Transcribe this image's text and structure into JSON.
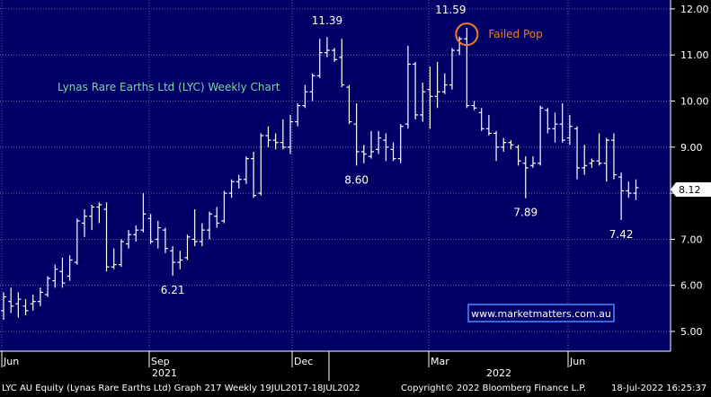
{
  "chart_data": {
    "type": "ohlc",
    "title": "Lynas Rare Earths Ltd (LYC) Weekly Chart",
    "ylim": [
      4.5,
      12.2
    ],
    "y_ticks": [
      "12.00",
      "11.00",
      "10.00",
      "9.00",
      "8.00",
      "7.00",
      "6.00",
      "5.00"
    ],
    "x_month_labels": [
      "Jun",
      "Sep",
      "Dec",
      "Mar",
      "Jun"
    ],
    "x_year_labels": [
      "2021",
      "2022"
    ],
    "last_price": "8.12",
    "bars": [
      {
        "o": 5.45,
        "h": 5.85,
        "l": 5.25,
        "c": 5.75
      },
      {
        "o": 5.65,
        "h": 5.95,
        "l": 5.4,
        "c": 5.55
      },
      {
        "o": 5.6,
        "h": 5.85,
        "l": 5.3,
        "c": 5.7
      },
      {
        "o": 5.55,
        "h": 5.7,
        "l": 5.35,
        "c": 5.45
      },
      {
        "o": 5.6,
        "h": 5.8,
        "l": 5.45,
        "c": 5.65
      },
      {
        "o": 5.65,
        "h": 5.95,
        "l": 5.55,
        "c": 5.85
      },
      {
        "o": 5.8,
        "h": 6.2,
        "l": 5.75,
        "c": 6.15
      },
      {
        "o": 6.1,
        "h": 6.45,
        "l": 5.95,
        "c": 6.35
      },
      {
        "o": 6.3,
        "h": 6.6,
        "l": 5.95,
        "c": 6.05
      },
      {
        "o": 6.2,
        "h": 6.65,
        "l": 6.1,
        "c": 6.55
      },
      {
        "o": 6.5,
        "h": 7.45,
        "l": 6.45,
        "c": 7.4
      },
      {
        "o": 7.35,
        "h": 7.65,
        "l": 7.05,
        "c": 7.5
      },
      {
        "o": 7.5,
        "h": 7.75,
        "l": 7.2,
        "c": 7.7
      },
      {
        "o": 7.7,
        "h": 7.8,
        "l": 7.35,
        "c": 7.75
      },
      {
        "o": 7.65,
        "h": 7.8,
        "l": 6.3,
        "c": 6.4
      },
      {
        "o": 6.4,
        "h": 6.8,
        "l": 6.35,
        "c": 6.45
      },
      {
        "o": 6.45,
        "h": 7.0,
        "l": 6.4,
        "c": 6.95
      },
      {
        "o": 6.9,
        "h": 7.2,
        "l": 6.8,
        "c": 7.1
      },
      {
        "o": 7.1,
        "h": 7.3,
        "l": 6.95,
        "c": 7.2
      },
      {
        "o": 7.2,
        "h": 8.0,
        "l": 7.15,
        "c": 7.55
      },
      {
        "o": 7.45,
        "h": 7.55,
        "l": 6.9,
        "c": 6.95
      },
      {
        "o": 7.0,
        "h": 7.4,
        "l": 6.8,
        "c": 7.25
      },
      {
        "o": 7.2,
        "h": 7.25,
        "l": 6.7,
        "c": 6.8
      },
      {
        "o": 6.75,
        "h": 6.85,
        "l": 6.21,
        "c": 6.5
      },
      {
        "o": 6.5,
        "h": 6.75,
        "l": 6.35,
        "c": 6.55
      },
      {
        "o": 6.6,
        "h": 7.1,
        "l": 6.55,
        "c": 7.05
      },
      {
        "o": 7.0,
        "h": 7.65,
        "l": 6.85,
        "c": 6.95
      },
      {
        "o": 6.95,
        "h": 7.35,
        "l": 6.85,
        "c": 7.2
      },
      {
        "o": 7.2,
        "h": 7.6,
        "l": 7.0,
        "c": 7.55
      },
      {
        "o": 7.5,
        "h": 7.7,
        "l": 7.25,
        "c": 7.35
      },
      {
        "o": 7.4,
        "h": 8.05,
        "l": 7.35,
        "c": 8.0
      },
      {
        "o": 8.0,
        "h": 8.3,
        "l": 7.9,
        "c": 8.25
      },
      {
        "o": 8.25,
        "h": 8.4,
        "l": 8.1,
        "c": 8.3
      },
      {
        "o": 8.3,
        "h": 8.8,
        "l": 8.2,
        "c": 8.75
      },
      {
        "o": 8.75,
        "h": 8.9,
        "l": 7.9,
        "c": 7.95
      },
      {
        "o": 8.0,
        "h": 9.3,
        "l": 7.95,
        "c": 9.25
      },
      {
        "o": 9.25,
        "h": 9.45,
        "l": 9.0,
        "c": 9.15
      },
      {
        "o": 9.15,
        "h": 9.3,
        "l": 8.95,
        "c": 9.1
      },
      {
        "o": 9.1,
        "h": 9.6,
        "l": 8.95,
        "c": 9.0
      },
      {
        "o": 9.0,
        "h": 9.7,
        "l": 8.85,
        "c": 9.55
      },
      {
        "o": 9.55,
        "h": 9.95,
        "l": 9.45,
        "c": 9.9
      },
      {
        "o": 9.9,
        "h": 10.35,
        "l": 9.85,
        "c": 10.2
      },
      {
        "o": 10.2,
        "h": 10.6,
        "l": 10.0,
        "c": 10.55
      },
      {
        "o": 10.55,
        "h": 11.35,
        "l": 10.5,
        "c": 11.05
      },
      {
        "o": 11.05,
        "h": 11.39,
        "l": 10.95,
        "c": 11.1
      },
      {
        "o": 11.1,
        "h": 11.15,
        "l": 10.85,
        "c": 10.9
      },
      {
        "o": 10.95,
        "h": 11.35,
        "l": 10.3,
        "c": 10.35
      },
      {
        "o": 10.3,
        "h": 10.35,
        "l": 9.5,
        "c": 9.55
      },
      {
        "o": 9.5,
        "h": 9.95,
        "l": 8.6,
        "c": 8.9
      },
      {
        "o": 8.9,
        "h": 9.05,
        "l": 8.65,
        "c": 8.85
      },
      {
        "o": 8.8,
        "h": 9.35,
        "l": 8.75,
        "c": 8.9
      },
      {
        "o": 8.95,
        "h": 9.35,
        "l": 8.85,
        "c": 9.2
      },
      {
        "o": 9.15,
        "h": 9.3,
        "l": 8.7,
        "c": 9.0
      },
      {
        "o": 8.95,
        "h": 9.1,
        "l": 8.7,
        "c": 8.75
      },
      {
        "o": 8.75,
        "h": 9.5,
        "l": 8.65,
        "c": 9.45
      },
      {
        "o": 9.5,
        "h": 11.2,
        "l": 9.4,
        "c": 10.8
      },
      {
        "o": 10.8,
        "h": 10.85,
        "l": 9.6,
        "c": 9.7
      },
      {
        "o": 9.7,
        "h": 10.4,
        "l": 9.55,
        "c": 10.2
      },
      {
        "o": 10.25,
        "h": 10.75,
        "l": 9.4,
        "c": 10.1
      },
      {
        "o": 10.1,
        "h": 10.85,
        "l": 9.85,
        "c": 10.2
      },
      {
        "o": 10.2,
        "h": 10.6,
        "l": 10.15,
        "c": 10.35
      },
      {
        "o": 10.35,
        "h": 11.15,
        "l": 10.25,
        "c": 11.1
      },
      {
        "o": 11.1,
        "h": 11.4,
        "l": 11.0,
        "c": 11.35
      },
      {
        "o": 11.35,
        "h": 11.59,
        "l": 9.85,
        "c": 9.9
      },
      {
        "o": 9.9,
        "h": 10.0,
        "l": 9.8,
        "c": 9.85
      },
      {
        "o": 9.75,
        "h": 9.85,
        "l": 9.35,
        "c": 9.4
      },
      {
        "o": 9.4,
        "h": 9.7,
        "l": 9.25,
        "c": 9.3
      },
      {
        "o": 9.3,
        "h": 9.35,
        "l": 8.7,
        "c": 9.0
      },
      {
        "o": 9.0,
        "h": 9.2,
        "l": 8.9,
        "c": 9.1
      },
      {
        "o": 9.1,
        "h": 9.15,
        "l": 8.95,
        "c": 9.05
      },
      {
        "o": 9.0,
        "h": 9.05,
        "l": 8.6,
        "c": 8.7
      },
      {
        "o": 8.65,
        "h": 8.8,
        "l": 7.89,
        "c": 8.55
      },
      {
        "o": 8.6,
        "h": 8.8,
        "l": 8.55,
        "c": 8.65
      },
      {
        "o": 8.65,
        "h": 9.9,
        "l": 8.6,
        "c": 9.85
      },
      {
        "o": 9.8,
        "h": 9.85,
        "l": 9.3,
        "c": 9.4
      },
      {
        "o": 9.4,
        "h": 9.75,
        "l": 9.1,
        "c": 9.5
      },
      {
        "o": 9.5,
        "h": 9.95,
        "l": 9.1,
        "c": 9.15
      },
      {
        "o": 9.2,
        "h": 9.7,
        "l": 9.05,
        "c": 9.45
      },
      {
        "o": 9.4,
        "h": 9.45,
        "l": 8.3,
        "c": 8.55
      },
      {
        "o": 8.55,
        "h": 9.05,
        "l": 8.4,
        "c": 8.6
      },
      {
        "o": 8.65,
        "h": 8.75,
        "l": 8.55,
        "c": 8.7
      },
      {
        "o": 8.7,
        "h": 9.3,
        "l": 8.6,
        "c": 8.65
      },
      {
        "o": 8.65,
        "h": 9.2,
        "l": 8.25,
        "c": 9.15
      },
      {
        "o": 9.15,
        "h": 9.3,
        "l": 8.3,
        "c": 8.4
      },
      {
        "o": 8.35,
        "h": 8.45,
        "l": 7.42,
        "c": 8.05
      },
      {
        "o": 8.05,
        "h": 8.25,
        "l": 7.9,
        "c": 8.0
      },
      {
        "o": 8.0,
        "h": 8.3,
        "l": 7.85,
        "c": 8.12
      }
    ],
    "labels": [
      {
        "text": "11.39",
        "bar": 44,
        "price": 11.39,
        "pos": "above"
      },
      {
        "text": "11.59",
        "bar": 63,
        "price": 11.59,
        "pos": "above-left"
      },
      {
        "text": "8.60",
        "bar": 48,
        "price": 8.6,
        "pos": "below"
      },
      {
        "text": "6.21",
        "bar": 23,
        "price": 6.21,
        "pos": "below"
      },
      {
        "text": "7.89",
        "bar": 71,
        "price": 7.89,
        "pos": "below"
      },
      {
        "text": "7.42",
        "bar": 84,
        "price": 7.42,
        "pos": "below"
      }
    ],
    "annotation": {
      "text": "Failed Pop",
      "bar": 63,
      "price": 11.45,
      "color": "#f07c2a"
    },
    "watermark": "www.marketmatters.com.au"
  },
  "footer": {
    "left": "LYC AU Equity (Lynas Rare Earths Ltd) Graph 217  Weekly 19JUL2017-18JUL2022",
    "center": "Copyright© 2022 Bloomberg Finance L.P.",
    "right": "18-Jul-2022 16:25:37"
  },
  "colors": {
    "background": "#000066",
    "bar": "#ffffff",
    "grid": "#8080a0",
    "title": "#7cd4a0",
    "accent": "#f07c2a",
    "watermark_border": "#4a8cff"
  }
}
